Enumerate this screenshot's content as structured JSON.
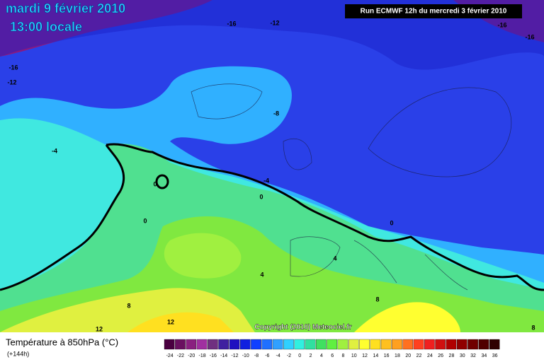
{
  "header": {
    "title": "mardi 9 février 2010",
    "subtitle": "13:00 locale",
    "run": "Run ECMWF 12h du mercredi 3 février 2010"
  },
  "contour_labels": [
    "-16",
    "-12",
    "-16",
    "-16",
    "-16",
    "-12",
    "-8",
    "-4",
    "-4",
    "0",
    "0",
    "0",
    "0",
    "4",
    "4",
    "8",
    "8",
    "12",
    "12",
    "8"
  ],
  "copyright": "Copyright (2010) Meteociel.fr",
  "footer": {
    "title": "Température à 850hPa (°C)",
    "subtitle": "(+144h)"
  },
  "legend": {
    "steps": [
      {
        "label": -24,
        "color": "#4a0040"
      },
      {
        "label": -22,
        "color": "#6a1060"
      },
      {
        "label": -20,
        "color": "#8a2080"
      },
      {
        "label": -18,
        "color": "#a030a0"
      },
      {
        "label": -16,
        "color": "#703080"
      },
      {
        "label": -14,
        "color": "#4020a0"
      },
      {
        "label": -12,
        "color": "#2010c0"
      },
      {
        "label": -10,
        "color": "#1020e0"
      },
      {
        "label": -8,
        "color": "#1040ff"
      },
      {
        "label": -6,
        "color": "#2070ff"
      },
      {
        "label": -4,
        "color": "#30a0ff"
      },
      {
        "label": -2,
        "color": "#30d0ff"
      },
      {
        "label": 0,
        "color": "#30f0e0"
      },
      {
        "label": 2,
        "color": "#30e0a0"
      },
      {
        "label": 4,
        "color": "#40e060"
      },
      {
        "label": 6,
        "color": "#60f040"
      },
      {
        "label": 8,
        "color": "#a0f040"
      },
      {
        "label": 10,
        "color": "#e0f040"
      },
      {
        "label": 12,
        "color": "#ffff30"
      },
      {
        "label": 14,
        "color": "#ffe020"
      },
      {
        "label": 16,
        "color": "#ffc020"
      },
      {
        "label": 18,
        "color": "#ffa020"
      },
      {
        "label": 20,
        "color": "#ff7020"
      },
      {
        "label": 22,
        "color": "#ff4020"
      },
      {
        "label": 24,
        "color": "#f02020"
      },
      {
        "label": 26,
        "color": "#d01010"
      },
      {
        "label": 28,
        "color": "#b00000"
      },
      {
        "label": 30,
        "color": "#900000"
      },
      {
        "label": 32,
        "color": "#700000"
      },
      {
        "label": 34,
        "color": "#500000"
      },
      {
        "label": 36,
        "color": "#300000"
      }
    ]
  }
}
